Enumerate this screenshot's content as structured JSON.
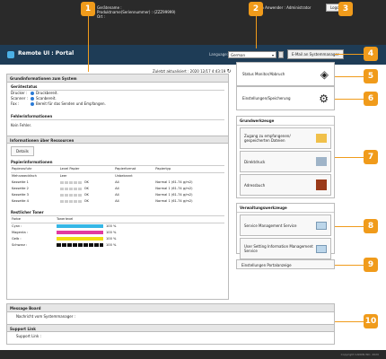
{
  "header": {
    "device_name_label": "Gerätename :",
    "product_serial_label": "Produktname(Seriennummer) :",
    "product_serial_value": "(ZZZ99999)",
    "location_label": "Ort :",
    "login_user_label": "Login Anwender :",
    "login_user_value": "Administrator",
    "logout_label": "Logout"
  },
  "titlebar": {
    "app_title": "Remote UI : Portal",
    "language_label": "Language:",
    "language_value": "German",
    "email_button": "E-Mail an Systemmanager"
  },
  "status_panel": {
    "title": "Grundinformationen zum System",
    "last_updated_label": "Zuletzt aktualisiert :",
    "last_updated_value": "2020 12/17 4:43:19",
    "device_status_title": "Gerätestatus",
    "printer_label": "Drucker :",
    "printer_status": "Druckbereit.",
    "scanner_label": "Scanner :",
    "scanner_status": "Scanbereit.",
    "fax_label": "Fax :",
    "fax_status": "Bereit für das Senden und Empfangen.",
    "error_title": "Fehlerinformationen",
    "error_value": "Kein Fehler.",
    "resources_title": "Informationen über Ressourcen",
    "details_button": "Details",
    "paper_title": "Papierinformationen",
    "paper_headers": [
      "Papierzufuhr",
      "Level Papier",
      "Papierformat",
      "Papiertyp"
    ],
    "paper_rows": [
      {
        "source": "Mehrzweckfach",
        "level": "Leer",
        "size": "Unbekannt",
        "type": ""
      },
      {
        "source": "Kassette 1",
        "level": "OK",
        "size": "A4",
        "type": "Normal 1 (61-74 g/m2)"
      },
      {
        "source": "Kassette 2",
        "level": "OK",
        "size": "A4",
        "type": "Normal 1 (61-74 g/m2)"
      },
      {
        "source": "Kassette 3",
        "level": "OK",
        "size": "A4",
        "type": "Normal 1 (61-74 g/m2)"
      },
      {
        "source": "Kassette 4",
        "level": "OK",
        "size": "A4",
        "type": "Normal 1 (61-74 g/m2)"
      }
    ],
    "toner_title": "Restlicher Toner",
    "toner_headers": [
      "Farbe",
      "Tonerlevel"
    ],
    "toner_rows": [
      {
        "color": "Cyan :",
        "level": "100 %",
        "fill": "#36b7e6"
      },
      {
        "color": "Magenta :",
        "level": "100 %",
        "fill": "#e23aa0"
      },
      {
        "color": "Gelb :",
        "level": "100 %",
        "fill": "#f2dc12"
      },
      {
        "color": "Schwarz :",
        "level": "100 %",
        "fill": "#111111"
      }
    ]
  },
  "right_panel": {
    "status_monitor": "Status Monitor/Abbruch",
    "settings": "Einstellungen/Speicherung",
    "tools_title": "Grundwerkzeuge",
    "tool_1": "Zugang zu empfangenen/ gespeicherten Dateien",
    "tool_2": "Direktdruck",
    "tool_3": "Adressbuch",
    "mgmt_title": "Verwaltungswerkzeuge",
    "mgmt_1": "Service Management Service",
    "mgmt_2": "User Setting Information Management Service",
    "portal_settings": "Einstellungen Portalanzeige"
  },
  "message_board": {
    "title": "Message Board",
    "text": "Nachricht vom Systemmanager :"
  },
  "support": {
    "title": "Support Link",
    "text": "Support Link :"
  },
  "footer": {
    "copyright": "Copyright CANON INC. 2020"
  },
  "callouts": [
    "1",
    "2",
    "3",
    "4",
    "5",
    "6",
    "7",
    "8",
    "9",
    "10"
  ],
  "colors": {
    "accent": "#f09b1b",
    "titlebar": "#1e3c56",
    "topbar": "#2a2a2a"
  }
}
